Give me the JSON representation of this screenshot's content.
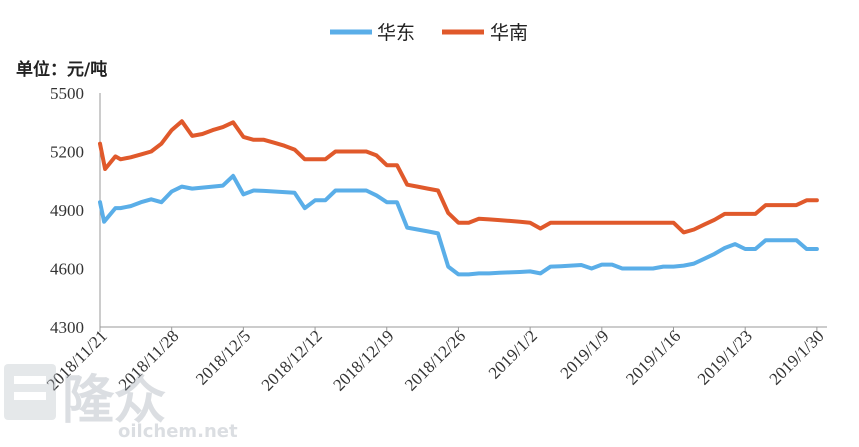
{
  "chart_data": {
    "type": "line",
    "unit_label": "单位：元/吨",
    "ylim": [
      4300,
      5500
    ],
    "y_ticks": [
      4300,
      4600,
      4900,
      5200,
      5500
    ],
    "x_ticks": [
      "2018/11/21",
      "2018/11/28",
      "2018/12/5",
      "2018/12/12",
      "2018/12/19",
      "2018/12/26",
      "2019/1/2",
      "2019/1/9",
      "2019/1/16",
      "2019/1/23",
      "2019/1/30"
    ],
    "xlim": [
      0,
      70.5
    ],
    "grid": false,
    "legend_position": "top-center",
    "series": [
      {
        "name": "华东",
        "color": "#5aaee8",
        "x": [
          0,
          0.4,
          1.5,
          2,
          3,
          4,
          5,
          6,
          7,
          8,
          9,
          10,
          11,
          12,
          13,
          14,
          15,
          16,
          17,
          18,
          19,
          20,
          21,
          22,
          23,
          24,
          25,
          26,
          27,
          28,
          29,
          30,
          31,
          32,
          33,
          34,
          35,
          36,
          37,
          38,
          39,
          40,
          41,
          42,
          43,
          44,
          45,
          46,
          47,
          48,
          49,
          50,
          51,
          52,
          53,
          54,
          55,
          56,
          57,
          58,
          59,
          60,
          61,
          62,
          63,
          64,
          65,
          66,
          67,
          68,
          69,
          70
        ],
        "values": [
          4940,
          4840,
          4910,
          4910,
          4920,
          4940,
          4955,
          4940,
          4995,
          5020,
          5010,
          5015,
          5020,
          5025,
          5075,
          4980,
          5000,
          4998,
          4995,
          4992,
          4988,
          4910,
          4950,
          4950,
          5000,
          5000,
          5000,
          5000,
          4975,
          4940,
          4940,
          4810,
          4800,
          4790,
          4780,
          4610,
          4570,
          4570,
          4575,
          4575,
          4578,
          4580,
          4582,
          4585,
          4575,
          4610,
          4612,
          4615,
          4618,
          4600,
          4620,
          4620,
          4600,
          4600,
          4600,
          4600,
          4610,
          4610,
          4615,
          4625,
          4650,
          4675,
          4705,
          4725,
          4700,
          4700,
          4745,
          4745,
          4745,
          4745,
          4700,
          4700
        ]
      },
      {
        "name": "华南",
        "color": "#e0592b",
        "x": [
          0,
          0.5,
          1.5,
          2,
          3,
          4,
          5,
          6,
          7,
          8,
          9,
          10,
          11,
          12,
          13,
          14,
          15,
          16,
          17,
          18,
          19,
          20,
          21,
          22,
          23,
          24,
          25,
          26,
          27,
          28,
          29,
          30,
          31,
          32,
          33,
          34,
          35,
          36,
          37,
          38,
          39,
          40,
          41,
          42,
          43,
          44,
          45,
          46,
          47,
          48,
          49,
          50,
          51,
          52,
          53,
          54,
          55,
          56,
          57,
          58,
          59,
          60,
          61,
          62,
          63,
          64,
          65,
          66,
          67,
          68,
          69,
          70
        ],
        "values": [
          5240,
          5110,
          5175,
          5160,
          5170,
          5185,
          5200,
          5240,
          5310,
          5355,
          5280,
          5290,
          5310,
          5325,
          5350,
          5275,
          5260,
          5260,
          5245,
          5230,
          5210,
          5160,
          5160,
          5160,
          5200,
          5200,
          5200,
          5200,
          5180,
          5130,
          5130,
          5030,
          5020,
          5010,
          5000,
          4885,
          4835,
          4835,
          4855,
          4852,
          4848,
          4844,
          4840,
          4835,
          4805,
          4835,
          4835,
          4835,
          4835,
          4835,
          4835,
          4835,
          4835,
          4835,
          4835,
          4835,
          4835,
          4835,
          4785,
          4800,
          4825,
          4850,
          4880,
          4880,
          4880,
          4880,
          4925,
          4925,
          4925,
          4925,
          4950,
          4950
        ]
      }
    ]
  },
  "watermark": {
    "brand": "隆众",
    "site": "oilchem.net"
  }
}
